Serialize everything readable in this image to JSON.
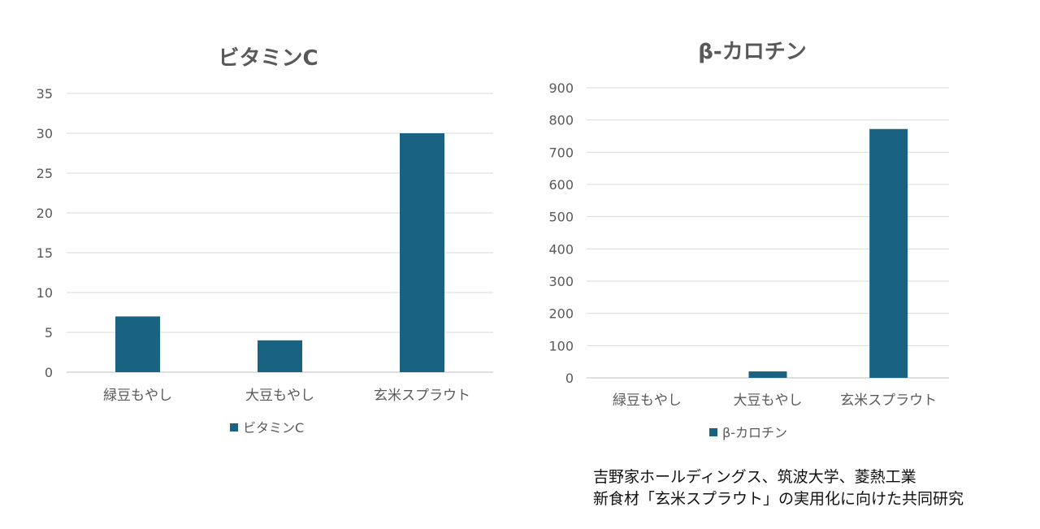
{
  "chart_data": [
    {
      "type": "bar",
      "title": "ビタミンC",
      "categories": [
        "緑豆もやし",
        "大豆もやし",
        "玄米スプラウト"
      ],
      "series": [
        {
          "name": "ビタミンC",
          "values": [
            7,
            4,
            30
          ]
        }
      ],
      "ylim": [
        0,
        35
      ],
      "yticks": [
        0,
        5,
        10,
        15,
        20,
        25,
        30,
        35
      ],
      "grid": true,
      "legend": "bottom",
      "color": "#1A6282"
    },
    {
      "type": "bar",
      "title": "β-カロチン",
      "categories": [
        "緑豆もやし",
        "大豆もやし",
        "玄米スプラウト"
      ],
      "series": [
        {
          "name": "β-カロチン",
          "values": [
            0,
            20,
            772
          ]
        }
      ],
      "ylim": [
        0,
        900
      ],
      "yticks": [
        0,
        100,
        200,
        300,
        400,
        500,
        600,
        700,
        800,
        900
      ],
      "grid": true,
      "legend": "bottom",
      "color": "#1A6282"
    }
  ],
  "source": {
    "line1": "吉野家ホールディングス、筑波大学、菱熱工業",
    "line2": "新食材「玄米スプラウト」の実用化に向けた共同研究"
  }
}
